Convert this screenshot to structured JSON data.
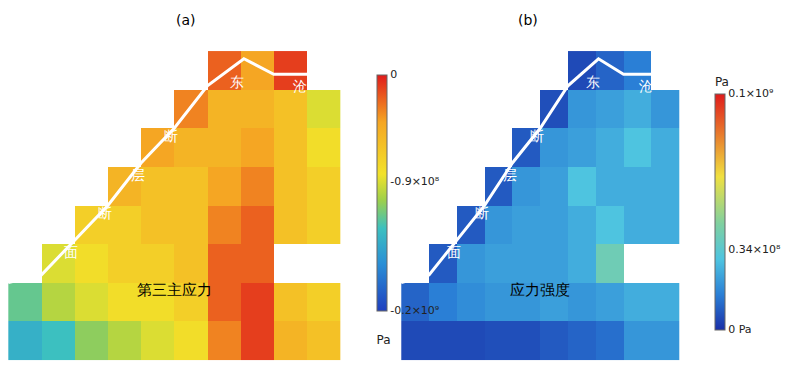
{
  "chart_data": [
    {
      "type": "heatmap",
      "title": "(a)",
      "label": "第三主应力",
      "fault_label": [
        "东",
        "沧",
        "断",
        "层",
        "断",
        "面"
      ],
      "tick_labels": false,
      "z": [
        [
          -140000000.0,
          -130000000.0,
          -110000000.0,
          -100000000.0,
          -90000000.0,
          -80000000.0,
          -30000000.0,
          -10000000.0,
          -50000000.0,
          -60000000.0
        ],
        [
          -120000000.0,
          -100000000.0,
          -90000000.0,
          -80000000.0,
          -80000000.0,
          -70000000.0,
          -20000000.0,
          -10000000.0,
          -60000000.0,
          -70000000.0
        ],
        [
          null,
          -90000000.0,
          -80000000.0,
          -70000000.0,
          -70000000.0,
          -60000000.0,
          -20000000.0,
          -20000000.0,
          null,
          null
        ],
        [
          null,
          null,
          -70000000.0,
          -70000000.0,
          -60000000.0,
          -60000000.0,
          -30000000.0,
          -20000000.0,
          -60000000.0,
          -70000000.0
        ],
        [
          null,
          null,
          null,
          -50000000.0,
          -60000000.0,
          -60000000.0,
          -40000000.0,
          -30000000.0,
          -60000000.0,
          -70000000.0
        ],
        [
          null,
          null,
          null,
          null,
          -40000000.0,
          -50000000.0,
          -50000000.0,
          -40000000.0,
          -60000000.0,
          -80000000.0
        ],
        [
          null,
          null,
          null,
          null,
          null,
          -30000000.0,
          -50000000.0,
          -50000000.0,
          -60000000.0,
          -90000000.0
        ],
        [
          null,
          null,
          null,
          null,
          null,
          null,
          -20000000.0,
          -40000000.0,
          -10000000.0,
          null
        ]
      ],
      "colorbar": {
        "title": "Pa",
        "range": [
          -200000000.0,
          0
        ],
        "ticks": [
          {
            "value": -200000000.0,
            "label": "-0.2×10⁹"
          },
          {
            "value": -90000000.0,
            "label": "-0.9×10⁸"
          },
          0
        ]
      }
    },
    {
      "type": "heatmap",
      "title": "(b)",
      "label": "应力强度",
      "fault_label": [
        "东",
        "沧",
        "断",
        "层",
        "断",
        "面"
      ],
      "tick_labels": false,
      "z": [
        [
          5000000.0,
          5000000.0,
          5000000.0,
          6000000.0,
          6000000.0,
          8000000.0,
          10000000.0,
          12000000.0,
          20000000.0,
          20000000.0
        ],
        [
          10000000.0,
          15000000.0,
          18000000.0,
          20000000.0,
          20000000.0,
          22000000.0,
          20000000.0,
          22000000.0,
          25000000.0,
          25000000.0
        ],
        [
          null,
          8000000.0,
          20000000.0,
          22000000.0,
          22000000.0,
          22000000.0,
          25000000.0,
          40000000.0,
          null,
          null
        ],
        [
          null,
          null,
          8000000.0,
          20000000.0,
          22000000.0,
          22000000.0,
          25000000.0,
          30000000.0,
          25000000.0,
          25000000.0
        ],
        [
          null,
          null,
          null,
          8000000.0,
          20000000.0,
          22000000.0,
          30000000.0,
          25000000.0,
          25000000.0,
          25000000.0
        ],
        [
          null,
          null,
          null,
          null,
          8000000.0,
          20000000.0,
          22000000.0,
          25000000.0,
          30000000.0,
          25000000.0
        ],
        [
          null,
          null,
          null,
          null,
          null,
          6000000.0,
          20000000.0,
          22000000.0,
          25000000.0,
          20000000.0
        ],
        [
          null,
          null,
          null,
          null,
          null,
          null,
          5000000.0,
          10000000.0,
          15000000.0,
          null
        ]
      ],
      "colorbar": {
        "title": "Pa",
        "range": [
          0,
          100000000.0
        ],
        "ticks": [
          {
            "value": 0,
            "label": "0 Pa"
          },
          {
            "value": 34000000.0,
            "label": "0.34×10⁸"
          },
          {
            "value": 100000000.0,
            "label": "0.1×10⁹"
          }
        ]
      }
    }
  ]
}
